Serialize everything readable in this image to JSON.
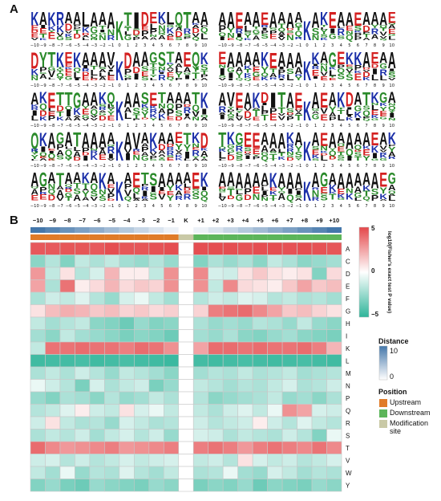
{
  "figure": {
    "panel_a_label": "A",
    "panel_b_label": "B"
  },
  "logos": {
    "tick_labels": [
      "−10",
      "−9",
      "−8",
      "−7",
      "−6",
      "−5",
      "−4",
      "−3",
      "−2",
      "−1",
      "0",
      "1",
      "2",
      "3",
      "4",
      "5",
      "6",
      "7",
      "8",
      "9",
      "10"
    ],
    "center_letter": "K",
    "items": [
      {
        "seq": "KAKRAALAAAKTIDEKLQTAA",
        "center_color": "#2a8a2a"
      },
      {
        "seq": "AAEAAEAAAAKAKEAAEAAAE",
        "center_color": "#1a2ea8"
      },
      {
        "seq": "DYTKEKAAAVKDAAGSTAEQK",
        "center_color": "#1a2ea8"
      },
      {
        "seq": "EAAAAKEAAAAKAGEKKAEAA",
        "center_color": "#1a2ea8"
      },
      {
        "seq": "AKETTGAAKQKAASETAAATK",
        "center_color": "#1a2ea8"
      },
      {
        "seq": "AVEAKDITAEKAEAKDATKGA",
        "center_color": "#1a2ea8"
      },
      {
        "seq": "QKAGATAAAAKAVAKAAETKD",
        "center_color": "#1a2ea8"
      },
      {
        "seq": "TKGEEAAAKAKAEAAAAAEAK",
        "center_color": "#1a2ea8"
      },
      {
        "seq": "AGATAAKAKAKAETSAAAAEK",
        "center_color": "#1a2ea8"
      },
      {
        "seq": "AAAAAAKAAAKAGAAAAAAEG",
        "center_color": "#1a2ea8"
      }
    ]
  },
  "colors": {
    "acidic": "#d42020",
    "basic": "#1a2ea8",
    "polar": "#2a8a2a",
    "hydrophobic": "#111111",
    "other": "#8a2a9a",
    "heat_high": "#e4474a",
    "heat_mid": "#ffffff",
    "heat_low": "#2fb59a",
    "distance_high": "#4477aa",
    "upstream": "#e07b28",
    "downstream": "#5cb55a",
    "modification_site": "#c9c9a6"
  },
  "heatmap": {
    "columns": [
      "−10",
      "−9",
      "−8",
      "−7",
      "−6",
      "−5",
      "−4",
      "−3",
      "−2",
      "−1",
      "K",
      "+1",
      "+2",
      "+3",
      "+4",
      "+5",
      "+6",
      "+7",
      "+8",
      "+9",
      "+10"
    ],
    "rows": [
      "A",
      "C",
      "D",
      "E",
      "F",
      "G",
      "H",
      "I",
      "K",
      "L",
      "M",
      "N",
      "P",
      "Q",
      "R",
      "S",
      "T",
      "V",
      "W",
      "Y"
    ],
    "distance": [
      10,
      9,
      8,
      7,
      6,
      5,
      4,
      3,
      2,
      1,
      0,
      1,
      2,
      3,
      4,
      5,
      6,
      7,
      8,
      9,
      10
    ],
    "position": [
      "Upstream",
      "Upstream",
      "Upstream",
      "Upstream",
      "Upstream",
      "Upstream",
      "Upstream",
      "Upstream",
      "Upstream",
      "Upstream",
      "Modification site",
      "Downstream",
      "Downstream",
      "Downstream",
      "Downstream",
      "Downstream",
      "Downstream",
      "Downstream",
      "Downstream",
      "Downstream",
      "Downstream"
    ],
    "values": [
      [
        4.5,
        4.5,
        4.6,
        4.6,
        4.5,
        4.8,
        4.6,
        4.6,
        4.7,
        4.8,
        0,
        4.8,
        4.8,
        4.8,
        4.7,
        4.8,
        4.8,
        4.7,
        4.8,
        4.7,
        4.6
      ],
      [
        -2.8,
        -1.8,
        -3,
        -1.5,
        -2,
        -1.5,
        -2.2,
        -2.5,
        -1.8,
        -2.5,
        0,
        -3,
        -2,
        -2.5,
        -2,
        -2.8,
        -1.5,
        -2,
        -2.8,
        -2.5,
        -2.2
      ],
      [
        2.8,
        -1.5,
        0.8,
        -1.8,
        -1,
        2,
        0.5,
        0.5,
        -1.5,
        3,
        0,
        3.2,
        -1,
        -1.2,
        0.8,
        1.5,
        0.8,
        0.5,
        0.8,
        -3,
        1
      ],
      [
        2.5,
        -2,
        3.8,
        0.5,
        1,
        2,
        1,
        1.5,
        1.2,
        3,
        0,
        3,
        -1.5,
        3.2,
        1,
        0.8,
        0.5,
        1.5,
        2.5,
        1.5,
        1.8
      ],
      [
        -2,
        -1.2,
        -1.5,
        -0.8,
        -1.8,
        -2.5,
        -1,
        -0.5,
        -1.5,
        -2.2,
        0,
        -1.8,
        -1.2,
        -1.5,
        -0.8,
        -1,
        -1.8,
        -1.5,
        -2,
        -1.8,
        -2.2
      ],
      [
        0.8,
        1.8,
        2.2,
        2,
        1.5,
        1.8,
        1.2,
        1.5,
        1,
        1.3,
        0,
        1.2,
        3.5,
        3.8,
        4,
        3.2,
        2.5,
        1.5,
        1.8,
        1.2,
        0.8
      ],
      [
        -1.5,
        -2.2,
        -1.8,
        -1.5,
        -2.8,
        -3,
        -3.5,
        -2.5,
        -3,
        -2.8,
        0,
        -2,
        -2.5,
        -2.2,
        -2.5,
        -1.8,
        -2,
        -2.5,
        -1.5,
        -2.5,
        -2.8
      ],
      [
        -2.2,
        -2.8,
        -1.5,
        -2.2,
        -2.5,
        -2.8,
        -3.2,
        -2.8,
        -3,
        -3.5,
        0,
        -2.2,
        -2.5,
        -2,
        -2.8,
        -3,
        -2.5,
        -2.2,
        -2.8,
        -3,
        -3.2
      ],
      [
        -1.5,
        3.8,
        3.8,
        4,
        3.8,
        3.8,
        3.5,
        4,
        3.8,
        3,
        0,
        2.5,
        4,
        4,
        3.8,
        4,
        3.8,
        3.8,
        4,
        3.5,
        2
      ],
      [
        -4.6,
        -4.5,
        -4.5,
        -4.4,
        -4.6,
        -4.5,
        -4.4,
        -4.5,
        -4.6,
        -4.7,
        0,
        -4.5,
        -4.6,
        -4.5,
        -4.4,
        -4.5,
        -4.6,
        -4.5,
        -4.4,
        -4.5,
        -4.6
      ],
      [
        -2,
        -1.5,
        -2,
        -1.2,
        -1.8,
        -2.5,
        -1.5,
        -1.8,
        -2.2,
        -2.8,
        0,
        -2.2,
        -1.8,
        -2,
        -1.5,
        -2,
        -1.8,
        -1.5,
        -2.2,
        -2,
        -1.8
      ],
      [
        -0.5,
        -1.2,
        -1.8,
        -3.2,
        -1,
        -2,
        -1.5,
        -1.2,
        -3.2,
        -2.5,
        0,
        -1.5,
        -1.8,
        -2.2,
        -1.8,
        -2,
        -1.5,
        -1,
        -2,
        -1.8,
        -1.2
      ],
      [
        -2.5,
        -3,
        -2,
        -2.2,
        -2.8,
        -1.8,
        -2.5,
        -2.2,
        -1.5,
        -2,
        0,
        -1.8,
        -2.8,
        -2.5,
        -2.2,
        -2,
        -1.5,
        -2.5,
        -2.2,
        -2.8,
        -2
      ],
      [
        -1.8,
        -1.5,
        -0.8,
        0.5,
        -1.2,
        -1.5,
        0.8,
        -1,
        -0.5,
        -1.5,
        0,
        -1.5,
        -2,
        -1.2,
        -0.8,
        -1.5,
        -0.5,
        3,
        2.5,
        -1,
        -1.2
      ],
      [
        -1.2,
        0.8,
        -1.5,
        -2,
        -1.8,
        -2.5,
        -1,
        -1.5,
        -2,
        -1.8,
        0,
        -1.2,
        -1.8,
        -1.5,
        -1.2,
        0.5,
        -1.2,
        -1.8,
        -0.8,
        -1.5,
        -1.8
      ],
      [
        -2,
        -1.5,
        -1.8,
        -1.2,
        -2.2,
        -1.5,
        -1,
        -1.8,
        -1.2,
        -2.5,
        0,
        -1,
        -1.2,
        -2,
        -1.5,
        -1.8,
        -2,
        -1.2,
        -1.8,
        -3,
        -0.5
      ],
      [
        4,
        3.2,
        2.8,
        3,
        3.2,
        3.5,
        2.8,
        3,
        3.2,
        3.5,
        0,
        3.5,
        3.8,
        3.5,
        2.8,
        3.5,
        3.8,
        3.5,
        3.2,
        3.8,
        3.2
      ],
      [
        -1.2,
        -1,
        -1.8,
        -1.2,
        -1.8,
        -1.5,
        -1,
        -1.5,
        -1.2,
        -1,
        0,
        -1.5,
        -1.2,
        -1.8,
        0.8,
        -1,
        -1.5,
        -1.2,
        -1.8,
        -1.5,
        -1
      ],
      [
        -1.5,
        -2.2,
        -0.5,
        -2.5,
        -1.8,
        -2,
        -0.8,
        -1.8,
        -2.2,
        -1.5,
        0,
        -2,
        -1.8,
        -0.5,
        -2.2,
        -2.5,
        -1,
        -1.5,
        -2.2,
        -1.8,
        -2
      ],
      [
        -3,
        -2.5,
        -3.2,
        -3.5,
        -2.5,
        -2.8,
        -3,
        -3.2,
        -2.5,
        -2.8,
        0,
        -3.2,
        -2.8,
        -3,
        -2.5,
        -3.5,
        -2.8,
        -3,
        -3.2,
        -2.5,
        -2.8
      ]
    ],
    "colorbar_ticks": [
      "5",
      "0",
      "−5"
    ],
    "colorbar_label": "log10(Fisher's exact test P value)"
  },
  "legend": {
    "distance_title": "Distance",
    "distance_ticks": [
      "10",
      "0"
    ],
    "position_title": "Position",
    "position_items": [
      "Upstream",
      "Downstream",
      "Modification site"
    ]
  }
}
